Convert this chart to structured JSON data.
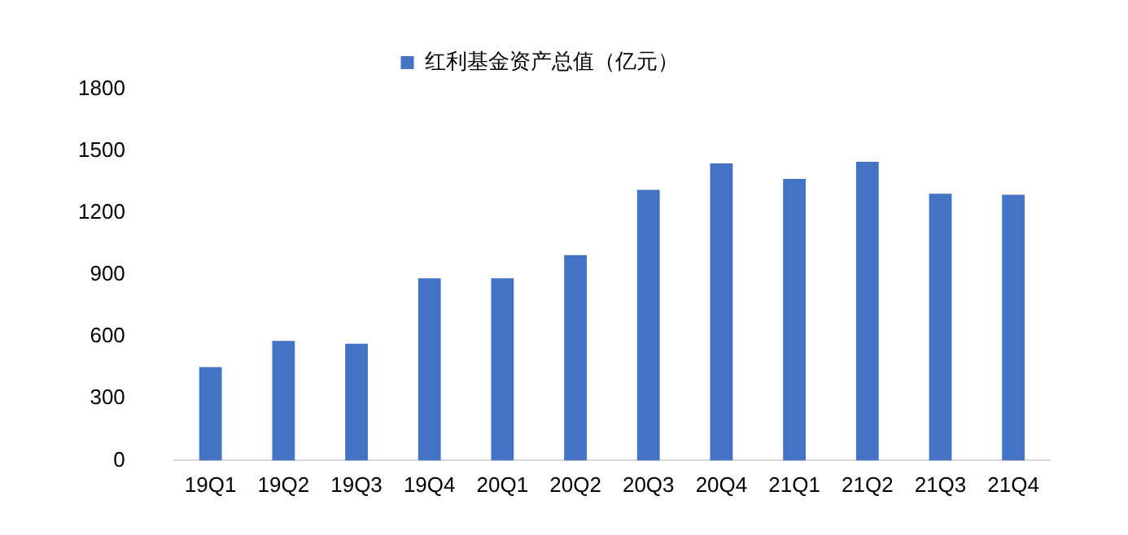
{
  "chart_data": {
    "type": "bar",
    "categories": [
      "19Q1",
      "19Q2",
      "19Q3",
      "19Q4",
      "20Q1",
      "20Q2",
      "20Q3",
      "20Q4",
      "21Q1",
      "21Q2",
      "21Q3",
      "21Q4"
    ],
    "series": [
      {
        "name": "红利基金资产总值（亿元）",
        "color": "#4472c4",
        "values": [
          453,
          580,
          567,
          884,
          884,
          996,
          1313,
          1441,
          1366,
          1449,
          1294,
          1289
        ]
      }
    ],
    "ylim": [
      0,
      1800
    ],
    "yticks": [
      0,
      300,
      600,
      900,
      1200,
      1500,
      1800
    ],
    "grid": false,
    "legend": "top"
  }
}
